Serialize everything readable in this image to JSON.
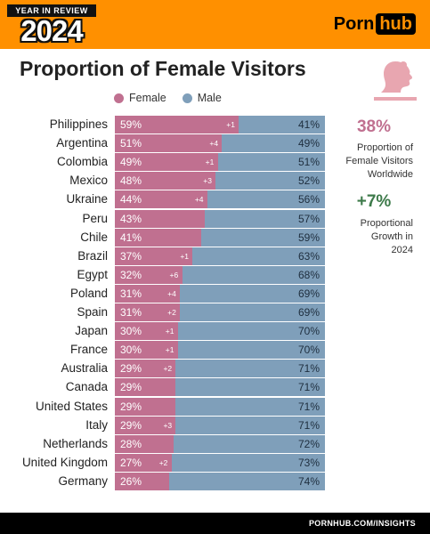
{
  "header": {
    "badge_top": "YEAR IN REVIEW",
    "badge_year": "2024",
    "logo_left": "Porn",
    "logo_right": "hub"
  },
  "title": "Proportion of Female Visitors",
  "legend": {
    "female": "Female",
    "male": "Male"
  },
  "colors": {
    "female": "#c07090",
    "male": "#7f9fba",
    "accent": "#ff9000",
    "growth": "#3d7a4a"
  },
  "side": {
    "stat1_value": "38%",
    "stat1_label": "Proportion of\nFemale Visitors\nWorldwide",
    "stat2_value": "+7%",
    "stat2_label": "Proportional\nGrowth in\n2024",
    "icon": "female-head-silhouette-icon"
  },
  "footer": {
    "url": "PORNHUB.COM/INSIGHTS"
  },
  "chart_data": {
    "type": "bar",
    "title": "Proportion of Female Visitors",
    "categories": [
      "Philippines",
      "Argentina",
      "Colombia",
      "Mexico",
      "Ukraine",
      "Peru",
      "Chile",
      "Brazil",
      "Egypt",
      "Poland",
      "Spain",
      "Japan",
      "France",
      "Australia",
      "Canada",
      "United States",
      "Italy",
      "Netherlands",
      "United Kingdom",
      "Germany"
    ],
    "series": [
      {
        "name": "Female",
        "values": [
          59,
          51,
          49,
          48,
          44,
          43,
          41,
          37,
          32,
          31,
          31,
          30,
          30,
          29,
          29,
          29,
          29,
          28,
          27,
          26
        ]
      },
      {
        "name": "Male",
        "values": [
          41,
          49,
          51,
          52,
          56,
          57,
          59,
          63,
          68,
          69,
          69,
          70,
          70,
          71,
          71,
          71,
          71,
          72,
          73,
          74
        ]
      }
    ],
    "growth": [
      "+1",
      "+4",
      "+1",
      "+3",
      "+4",
      "",
      "",
      "+1",
      "+6",
      "+4",
      "+2",
      "+1",
      "+1",
      "+2",
      "",
      "",
      "+3",
      "",
      "+2",
      ""
    ],
    "stacked": true,
    "legend": "top",
    "xlim": [
      0,
      100
    ]
  }
}
